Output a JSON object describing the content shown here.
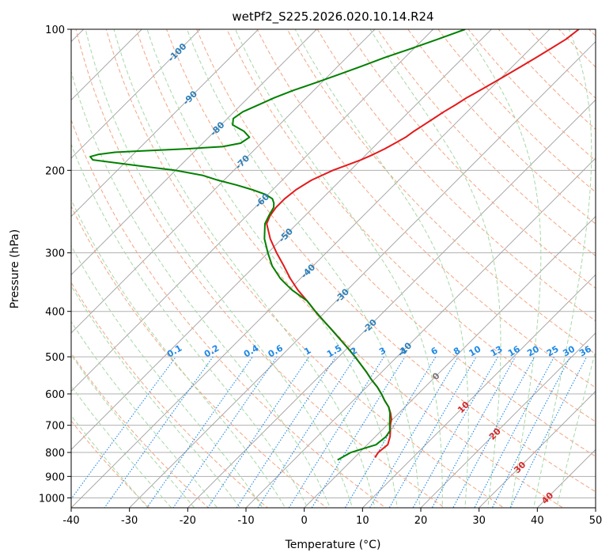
{
  "chart_data": {
    "type": "line",
    "chart_kind": "skew-T log-P diagram",
    "title": "wetPf2_S225.2026.020.10.14.R24",
    "xlabel": "Temperature (°C)",
    "ylabel": "Pressure (hPa)",
    "xlim": [
      -40,
      50
    ],
    "ylim": [
      1050,
      100
    ],
    "y_scale": "log",
    "grid": true,
    "x_ticks": [
      -40,
      -30,
      -20,
      -10,
      0,
      10,
      20,
      30,
      40,
      50
    ],
    "y_ticks": [
      100,
      200,
      300,
      400,
      500,
      600,
      700,
      800,
      900,
      1000
    ],
    "isotherm_labels": [
      -100,
      -90,
      -80,
      -70,
      -60,
      -50,
      -40,
      -30,
      -20,
      -10,
      0,
      10,
      20,
      30,
      40
    ],
    "mixing_ratio_labels": [
      "0.1",
      "0.2",
      "0.4",
      "0.6",
      "1",
      "1.5",
      "2",
      "3",
      "4",
      "6",
      "8",
      "10",
      "13",
      "16",
      "20",
      "25",
      "30",
      "36"
    ],
    "colors": {
      "temperature": "#e31a1c",
      "dewpoint": "#008000",
      "isotherm": "#9e9e9e",
      "dry_adiabat": "#f4a582",
      "moist_adiabat": "#a6d8a6",
      "mixing_ratio": "#1e88e5",
      "cold_isotherm_label": "#2c7fb8",
      "warm_isotherm_label": "#d62728"
    },
    "series": [
      {
        "key": "temperature",
        "p": [
          820,
          800,
          770,
          740,
          720,
          700,
          680,
          660,
          640,
          620,
          600,
          580,
          560,
          540,
          520,
          500,
          480,
          460,
          440,
          420,
          400,
          380,
          360,
          340,
          320,
          300,
          280,
          260,
          250,
          240,
          230,
          220,
          210,
          200,
          195,
          190,
          185,
          180,
          175,
          170,
          165,
          160,
          155,
          150,
          145,
          140,
          135,
          130,
          125,
          120,
          115,
          110,
          105,
          100
        ],
        "t": [
          3.5,
          3.2,
          3.5,
          2.5,
          1.6,
          0.6,
          -0.2,
          -1.4,
          -2.8,
          -4.6,
          -6.3,
          -8.2,
          -10.4,
          -12.5,
          -14.8,
          -17.2,
          -19.8,
          -22.6,
          -25.5,
          -28.6,
          -31.8,
          -35.0,
          -38.5,
          -41.8,
          -45.0,
          -48.5,
          -52.0,
          -55.2,
          -56.0,
          -56.4,
          -56.4,
          -56.0,
          -55.0,
          -53.0,
          -51.5,
          -50.0,
          -48.8,
          -47.8,
          -47.0,
          -46.2,
          -45.8,
          -45.2,
          -44.6,
          -44.0,
          -43.2,
          -42.5,
          -41.5,
          -40.5,
          -39.5,
          -38.5,
          -37.5,
          -36.5,
          -35.5,
          -35.0
        ]
      },
      {
        "key": "dewpoint",
        "p": [
          830,
          800,
          770,
          740,
          720,
          700,
          680,
          660,
          640,
          620,
          600,
          580,
          560,
          540,
          520,
          500,
          480,
          460,
          440,
          420,
          400,
          380,
          360,
          350,
          340,
          320,
          300,
          280,
          260,
          250,
          240,
          235,
          230,
          225,
          220,
          215,
          210,
          205,
          200,
          195,
          190,
          187,
          185,
          183,
          182,
          180,
          178,
          175,
          170,
          165,
          160,
          155,
          150,
          145,
          140,
          135,
          130,
          125,
          120,
          115,
          110,
          105,
          100
        ],
        "t": [
          -2.5,
          -1.5,
          1.5,
          1.8,
          1.5,
          0.5,
          -0.5,
          -1.5,
          -2.8,
          -4.6,
          -6.3,
          -8.2,
          -10.4,
          -12.5,
          -14.8,
          -17.2,
          -19.8,
          -22.6,
          -25.5,
          -28.6,
          -31.8,
          -35.0,
          -39.5,
          -41.5,
          -43.5,
          -47.0,
          -50.0,
          -53.0,
          -55.5,
          -56.2,
          -56.8,
          -57.5,
          -58.5,
          -60.5,
          -63.5,
          -67.0,
          -71.0,
          -74.5,
          -80.0,
          -88.0,
          -96.0,
          -97.0,
          -96.0,
          -93.5,
          -90.0,
          -82.0,
          -76.0,
          -73.5,
          -73.0,
          -75.0,
          -78.0,
          -79.0,
          -78.5,
          -77.0,
          -75.5,
          -73.5,
          -71.0,
          -68.5,
          -66.0,
          -63.5,
          -60.5,
          -57.5,
          -54.5
        ]
      }
    ]
  }
}
